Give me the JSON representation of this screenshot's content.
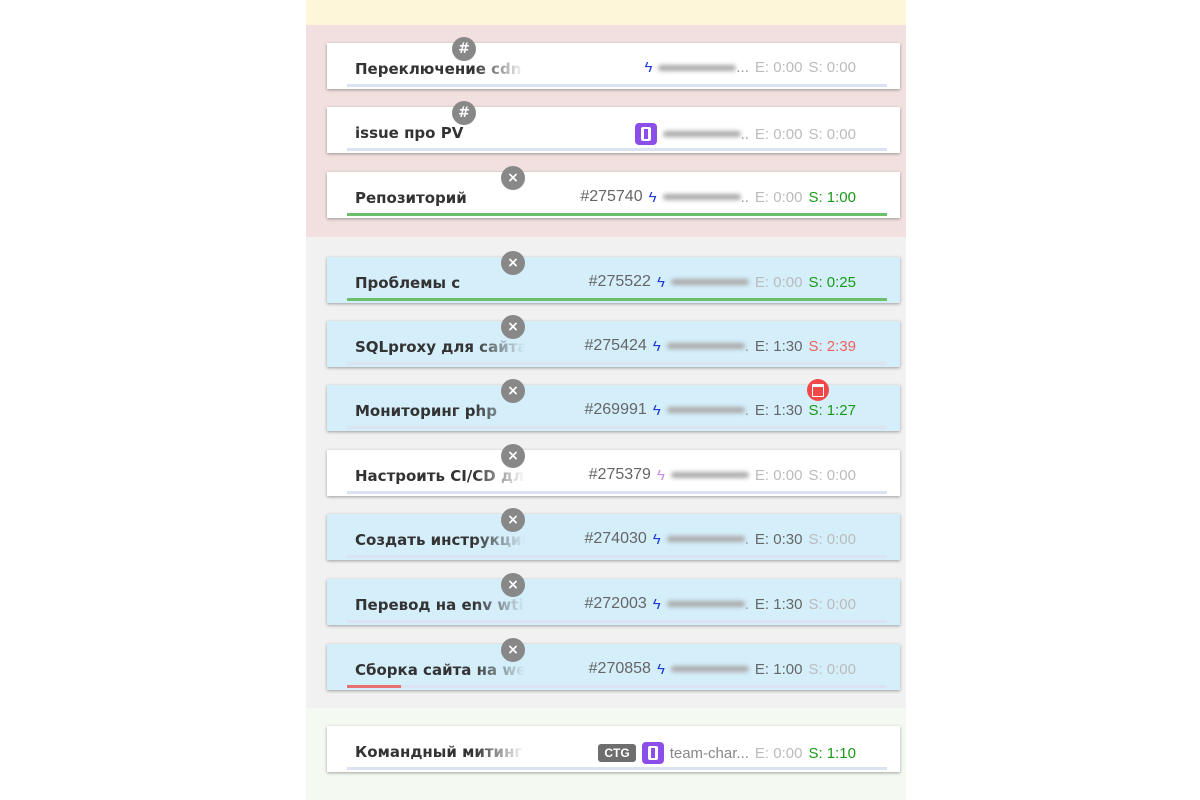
{
  "sections": [
    {
      "color": "#fdf6d8"
    },
    {
      "color": "#f1e0df"
    },
    {
      "color": "#f1f1f1"
    },
    {
      "color": "#f4f9f1"
    }
  ],
  "cards": [
    {
      "title": "Переключение cdn в",
      "number": "",
      "badge": "#",
      "icon": "bolt-icon",
      "assignee_suffix": "...",
      "estimate": "E: 0:00",
      "spent": "S: 0:00",
      "spent_color": "gray",
      "progress": 0,
      "bg": "white"
    },
    {
      "title": "issue про PV",
      "number": "",
      "badge": "#",
      "icon": "tie-icon",
      "assignee_suffix": "..",
      "estimate": "E: 0:00",
      "spent": "S: 0:00",
      "spent_color": "gray",
      "progress": 0,
      "bg": "white"
    },
    {
      "title": "Репозиторий",
      "number": "#275740",
      "badge": "×",
      "icon": "bolt-icon",
      "assignee_suffix": "..",
      "estimate": "E: 0:00",
      "spent": "S: 1:00",
      "spent_color": "green",
      "progress": 100,
      "bg": "white"
    },
    {
      "title": "Проблемы с",
      "number": "#275522",
      "badge": "×",
      "icon": "bolt-icon",
      "assignee_suffix": "",
      "estimate": "E: 0:00",
      "spent": "S: 0:25",
      "spent_color": "green",
      "progress": 100,
      "bg": "blue"
    },
    {
      "title": "SQLproxy для сайта",
      "number": "#275424",
      "badge": "×",
      "icon": "bolt-icon",
      "assignee_suffix": ".",
      "estimate": "E: 1:30",
      "spent": "S: 2:39",
      "spent_color": "red",
      "progress": 0,
      "bg": "blue"
    },
    {
      "title": "Мониторинг php",
      "number": "#269991",
      "badge": "×",
      "icon": "bolt-icon",
      "assignee_suffix": ".",
      "estimate": "E: 1:30",
      "spent": "S: 1:27",
      "spent_color": "green",
      "progress": 0,
      "bg": "blue",
      "calendar": true
    },
    {
      "title": "Настроить CI/CD для",
      "number": "#275379",
      "badge": "×",
      "icon": "bolt-icon-light",
      "assignee_suffix": "",
      "estimate": "E: 0:00",
      "spent": "S: 0:00",
      "spent_color": "gray",
      "progress": 0,
      "bg": "white"
    },
    {
      "title": "Создать инструкцию",
      "number": "#274030",
      "badge": "×",
      "icon": "bolt-icon",
      "assignee_suffix": ".",
      "estimate": "E: 0:30",
      "spent": "S: 0:00",
      "spent_color": "gray",
      "progress": 0,
      "bg": "blue"
    },
    {
      "title": "Перевод на env wtis",
      "number": "#272003",
      "badge": "×",
      "icon": "bolt-icon",
      "assignee_suffix": ".",
      "estimate": "E: 1:30",
      "spent": "S: 0:00",
      "spent_color": "gray",
      "progress": 0,
      "bg": "blue"
    },
    {
      "title": "Сборка сайта на werf",
      "number": "#270858",
      "badge": "×",
      "icon": "bolt-icon",
      "assignee_suffix": "",
      "estimate": "E: 1:00",
      "spent": "S: 0:00",
      "spent_color": "gray",
      "progress": 10,
      "progress_color": "#e87070",
      "bg": "blue"
    },
    {
      "title": "Командный митинг",
      "number": "",
      "tag": "CTG",
      "icon": "tie-icon",
      "assignee": "team-char...",
      "estimate": "E: 0:00",
      "spent": "S: 1:10",
      "spent_color": "green",
      "progress": 0,
      "bg": "white"
    }
  ]
}
